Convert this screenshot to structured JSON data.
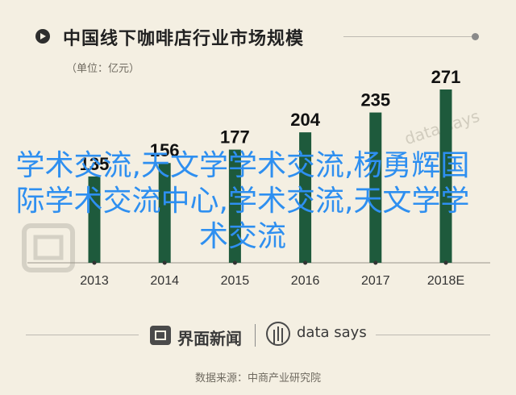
{
  "title": "中国线下咖啡店行业市场规模",
  "unit": "（单位：亿元）",
  "chart_data": {
    "type": "bar",
    "categories": [
      "2013",
      "2014",
      "2015",
      "2016",
      "2017",
      "2018E"
    ],
    "values": [
      135,
      156,
      177,
      204,
      235,
      271
    ],
    "value_labels": [
      "135",
      "156",
      "177",
      "204",
      "235",
      "271"
    ],
    "ylim": [
      0,
      271
    ],
    "bar_color": "#1e5a3c",
    "grid": false
  },
  "overlay_text": "学术交流,天文学学术交流,杨勇辉国际学术交流中心,学术交流,天文学学术交流",
  "watermark": "data says",
  "footer": {
    "brand1": "界面新闻",
    "brand2": "data says"
  },
  "source": "数据来源：中商产业研究院"
}
